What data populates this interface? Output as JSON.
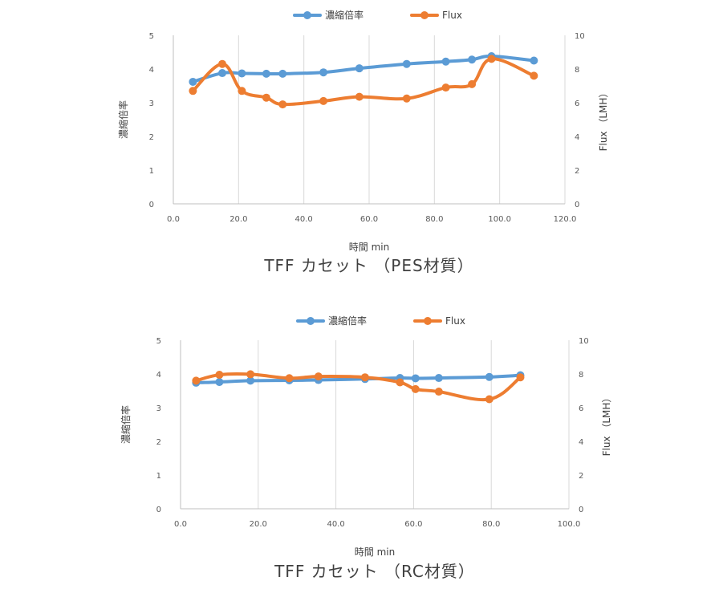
{
  "chart_data": [
    {
      "type": "line",
      "caption": "TFF カセット （PES材質）",
      "xlabel": "時間 min",
      "ylabel_left": "濃縮倍率",
      "ylabel_right": "Flux （LMH）",
      "xlim": [
        0,
        120
      ],
      "xticks": [
        "0.0",
        "20.0",
        "40.0",
        "60.0",
        "80.0",
        "100.0",
        "120.0"
      ],
      "ylim_left": [
        0,
        5
      ],
      "yticks_left": [
        "0",
        "1",
        "2",
        "3",
        "4",
        "5"
      ],
      "ylim_right": [
        0,
        10
      ],
      "yticks_right": [
        "0",
        "2",
        "4",
        "6",
        "8",
        "10"
      ],
      "grid": "vertical",
      "legend_position": "top",
      "series": [
        {
          "name": "濃縮倍率",
          "axis": "left",
          "color": "#5B9BD5",
          "x": [
            6,
            15,
            21,
            28.5,
            33.5,
            46,
            57,
            71.5,
            83.5,
            91.5,
            97.5,
            110.5
          ],
          "y": [
            3.62,
            3.88,
            3.87,
            3.86,
            3.86,
            3.9,
            4.02,
            4.15,
            4.22,
            4.28,
            4.38,
            4.25
          ]
        },
        {
          "name": "Flux",
          "axis": "right",
          "color": "#ED7D31",
          "x": [
            6,
            15,
            21,
            28.5,
            33.5,
            46,
            57,
            71.5,
            83.5,
            91.5,
            97.5,
            110.5
          ],
          "y": [
            6.7,
            8.3,
            6.7,
            6.3,
            5.9,
            6.1,
            6.35,
            6.25,
            6.9,
            7.1,
            8.6,
            7.6
          ]
        }
      ]
    },
    {
      "type": "line",
      "caption": "TFF カセット （RC材質）",
      "xlabel": "時間 min",
      "ylabel_left": "濃縮倍率",
      "ylabel_right": "Flux （LMH）",
      "xlim": [
        0,
        100
      ],
      "xticks": [
        "0.0",
        "20.0",
        "40.0",
        "60.0",
        "80.0",
        "100.0"
      ],
      "ylim_left": [
        0,
        5
      ],
      "yticks_left": [
        "0",
        "1",
        "2",
        "3",
        "4",
        "5"
      ],
      "ylim_right": [
        0,
        10
      ],
      "yticks_right": [
        "0",
        "2",
        "4",
        "6",
        "8",
        "10"
      ],
      "grid": "vertical",
      "legend_position": "top",
      "series": [
        {
          "name": "濃縮倍率",
          "axis": "left",
          "color": "#5B9BD5",
          "x": [
            4,
            10,
            18,
            28,
            35.5,
            47.5,
            56.5,
            60.5,
            66.5,
            79.5,
            87.5
          ],
          "y": [
            3.74,
            3.76,
            3.8,
            3.81,
            3.82,
            3.85,
            3.88,
            3.87,
            3.88,
            3.91,
            3.96
          ]
        },
        {
          "name": "Flux",
          "axis": "right",
          "color": "#ED7D31",
          "x": [
            4,
            10,
            18,
            28,
            35.5,
            47.5,
            56.5,
            60.5,
            66.5,
            79.5,
            87.5
          ],
          "y": [
            7.6,
            7.95,
            7.98,
            7.75,
            7.85,
            7.8,
            7.5,
            7.1,
            6.95,
            6.5,
            7.8
          ]
        }
      ]
    }
  ]
}
